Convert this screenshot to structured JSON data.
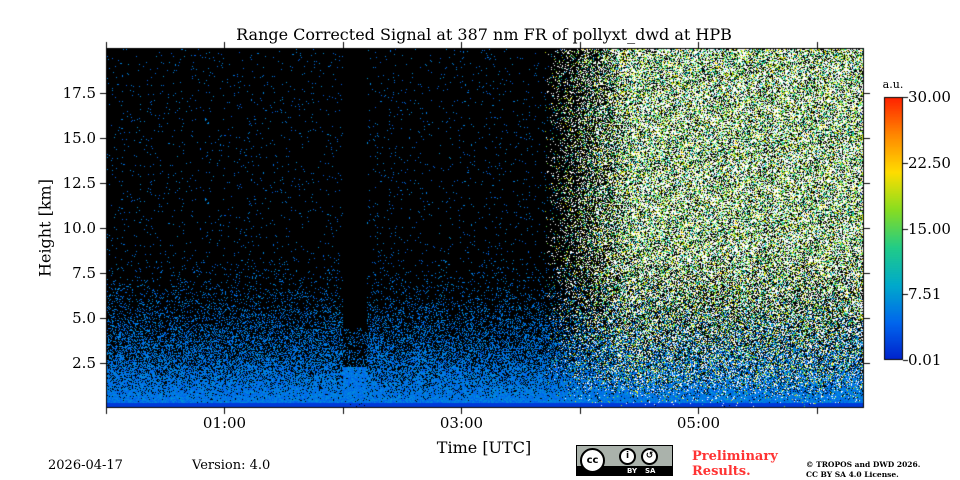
{
  "chart_data": {
    "type": "heatmap",
    "title": "Range Corrected Signal at 387 nm FR of pollyxt_dwd at HPB",
    "xlabel": "Time [UTC]",
    "ylabel": "Height [km]",
    "x_range_hours": [
      0,
      6.4
    ],
    "ylim_km": [
      0,
      20
    ],
    "xticks": [
      {
        "value": 1,
        "label": "01:00"
      },
      {
        "value": 3,
        "label": "03:00"
      },
      {
        "value": 5,
        "label": "05:00"
      }
    ],
    "x_minor_ticks": [
      0,
      2,
      4,
      6
    ],
    "yticks": [
      {
        "value": 2.5,
        "label": "2.5"
      },
      {
        "value": 5.0,
        "label": "5.0"
      },
      {
        "value": 7.5,
        "label": "7.5"
      },
      {
        "value": 10.0,
        "label": "10.0"
      },
      {
        "value": 12.5,
        "label": "12.5"
      },
      {
        "value": 15.0,
        "label": "15.0"
      },
      {
        "value": 17.5,
        "label": "17.5"
      }
    ],
    "colorbar": {
      "unit": "a.u.",
      "range": [
        0.01,
        30.0
      ],
      "ticks": [
        {
          "value": 0.01,
          "label": "0.01"
        },
        {
          "value": 7.51,
          "label": "7.51"
        },
        {
          "value": 15.0,
          "label": "15.00"
        },
        {
          "value": 22.5,
          "label": "22.50"
        },
        {
          "value": 30.0,
          "label": "30.00"
        }
      ],
      "colormap": [
        "#0022cc",
        "#0066ee",
        "#00aacc",
        "#22cc88",
        "#88dd22",
        "#ffdd00",
        "#ff8800",
        "#ff2200"
      ]
    },
    "features": {
      "gap_start_hours": 2.0,
      "gap_end_hours": 2.2,
      "daylight_onset_hours": 3.9,
      "near_surface_band_km": [
        0,
        0.3
      ],
      "saturation_color": "#ffffff",
      "background_color": "#000000"
    }
  },
  "footer": {
    "date": "2026-04-17",
    "version": "Version: 4.0",
    "license_badge": {
      "by": "BY",
      "sa": "SA",
      "cc": "cc"
    },
    "preliminary": [
      "Preliminary",
      "Results."
    ],
    "copyright": [
      "© TROPOS and DWD 2026.",
      "CC BY SA 4.0 License."
    ]
  }
}
